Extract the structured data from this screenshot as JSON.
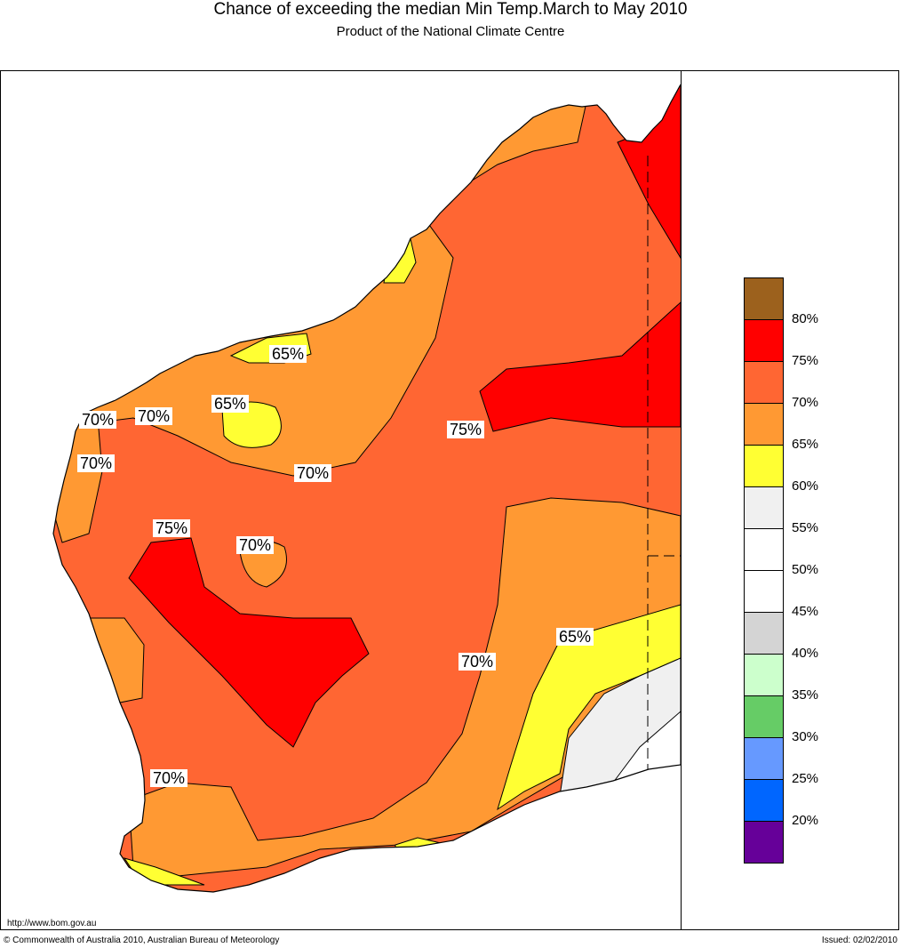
{
  "title": "Chance of exceeding the median Min Temp.March to May 2010",
  "subtitle": "Product of the National Climate Centre",
  "map_labels": [
    "65%",
    "65%",
    "70%",
    "70%",
    "70%",
    "75%",
    "70%",
    "75%",
    "70%",
    "70%",
    "65%",
    "70%"
  ],
  "legend": {
    "colors": [
      "#9c611d",
      "#ff0000",
      "#ff6633",
      "#ff9933",
      "#ffff33",
      "#f0f0f0",
      "#ffffff",
      "#ffffff",
      "#d4d4d4",
      "#ccffcc",
      "#66cc66",
      "#6699ff",
      "#0066ff",
      "#660099"
    ],
    "ticks": [
      "80%",
      "75%",
      "70%",
      "65%",
      "60%",
      "55%",
      "50%",
      "45%",
      "40%",
      "35%",
      "30%",
      "25%",
      "20%"
    ]
  },
  "footer": {
    "url": "http://www.bom.gov.au",
    "copyright": "© Commonwealth of Australia 2010, Australian Bureau of Meteorology",
    "issued": "Issued: 02/02/2010"
  }
}
